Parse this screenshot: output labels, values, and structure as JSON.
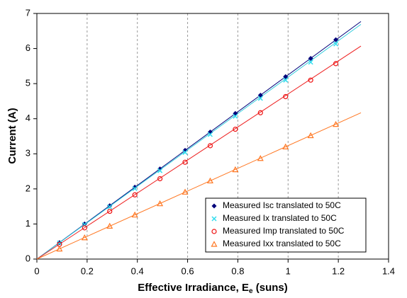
{
  "chart_data": {
    "type": "scatter",
    "x_label": [
      "Effective Irradiance, E",
      "e",
      " (suns)"
    ],
    "y_label": "Current (A)",
    "xlim": [
      0,
      1.4
    ],
    "xticks": [
      0,
      0.2,
      0.4,
      0.6,
      0.8,
      1,
      1.2,
      1.4
    ],
    "ylim": [
      0,
      7
    ],
    "yticks": [
      0,
      1,
      2,
      3,
      4,
      5,
      6,
      7
    ],
    "grid": "x",
    "legend": "lower right",
    "x": [
      0.09,
      0.19,
      0.29,
      0.39,
      0.49,
      0.59,
      0.69,
      0.79,
      0.89,
      0.99,
      1.09,
      1.19
    ],
    "series": [
      {
        "name": "Measured Isc translated to 50C",
        "color": "#00007a",
        "marker": "diamond",
        "values": [
          0.47,
          1.0,
          1.52,
          2.05,
          2.57,
          3.1,
          3.62,
          4.15,
          4.67,
          5.2,
          5.72,
          6.25
        ]
      },
      {
        "name": "Measured Ix translated to 50C",
        "color": "#33ddee",
        "marker": "cross",
        "values": [
          0.46,
          0.98,
          1.49,
          2.01,
          2.52,
          3.04,
          3.55,
          4.07,
          4.58,
          5.1,
          5.61,
          6.13
        ]
      },
      {
        "name": "Measured Imp translated to 50C",
        "color": "#ee1111",
        "marker": "circle",
        "values": [
          0.42,
          0.89,
          1.36,
          1.83,
          2.29,
          2.76,
          3.23,
          3.7,
          4.17,
          4.63,
          5.1,
          5.57
        ]
      },
      {
        "name": "Measured Ixx translated to 50C",
        "color": "#ff7722",
        "marker": "triangle",
        "values": [
          0.29,
          0.61,
          0.94,
          1.26,
          1.58,
          1.91,
          2.23,
          2.55,
          2.87,
          3.2,
          3.52,
          3.84
        ]
      }
    ],
    "fits": [
      {
        "color": "#00007a",
        "x": [
          0,
          1.29
        ],
        "values": [
          0,
          6.77
        ]
      },
      {
        "color": "#33ccdd",
        "x": [
          0,
          1.29
        ],
        "values": [
          0,
          6.69
        ]
      },
      {
        "color": "#ee2222",
        "x": [
          0,
          1.29
        ],
        "values": [
          0,
          6.07
        ]
      },
      {
        "color": "#ff7722",
        "x": [
          0,
          1.29
        ],
        "values": [
          0,
          4.17
        ]
      }
    ]
  }
}
